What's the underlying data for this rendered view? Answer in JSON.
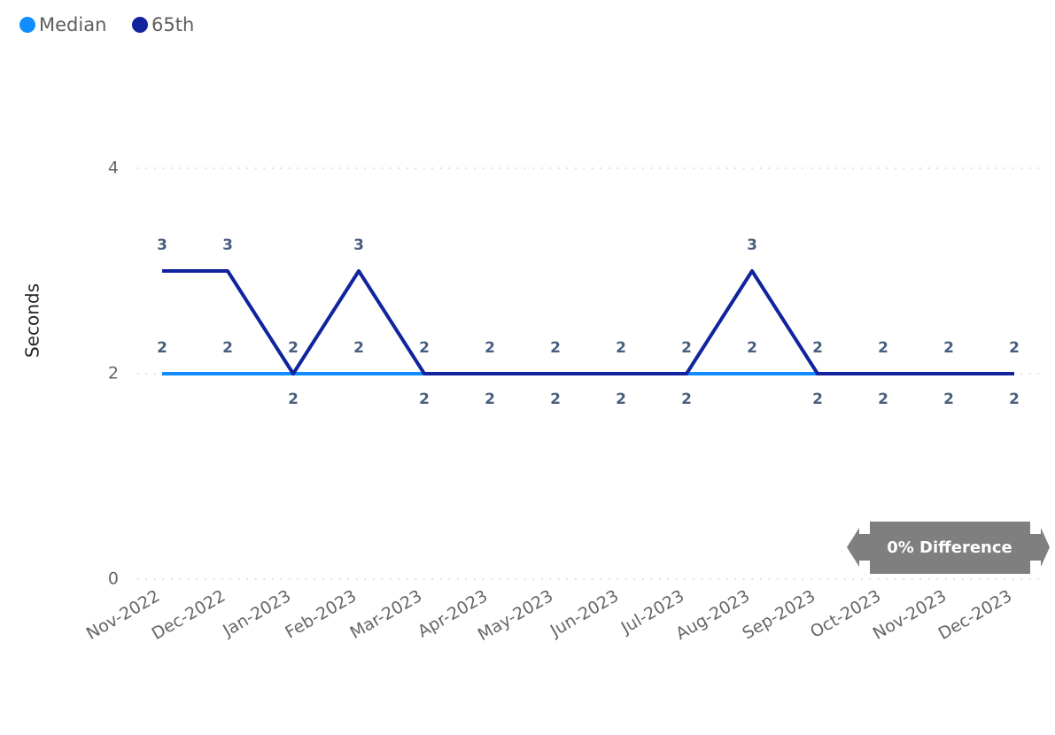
{
  "chart_data": {
    "type": "line",
    "y_label": "Seconds",
    "categories": [
      "Nov-2022",
      "Dec-2022",
      "Jan-2023",
      "Feb-2023",
      "Mar-2023",
      "Apr-2023",
      "May-2023",
      "Jun-2023",
      "Jul-2023",
      "Aug-2023",
      "Sep-2023",
      "Oct-2023",
      "Nov-2023",
      "Dec-2023"
    ],
    "series": [
      {
        "name": "Median",
        "color": "#118dff",
        "values": [
          2,
          2,
          2,
          2,
          2,
          2,
          2,
          2,
          2,
          2,
          2,
          2,
          2,
          2
        ]
      },
      {
        "name": "65th",
        "color": "#12239e",
        "values": [
          3,
          3,
          2,
          3,
          2,
          2,
          2,
          2,
          2,
          3,
          2,
          2,
          2,
          2
        ]
      }
    ],
    "ylim": [
      0,
      4
    ],
    "yticks": [
      0,
      2,
      4
    ],
    "grid": true,
    "legend": "top-left",
    "annotation": "0% Difference"
  }
}
